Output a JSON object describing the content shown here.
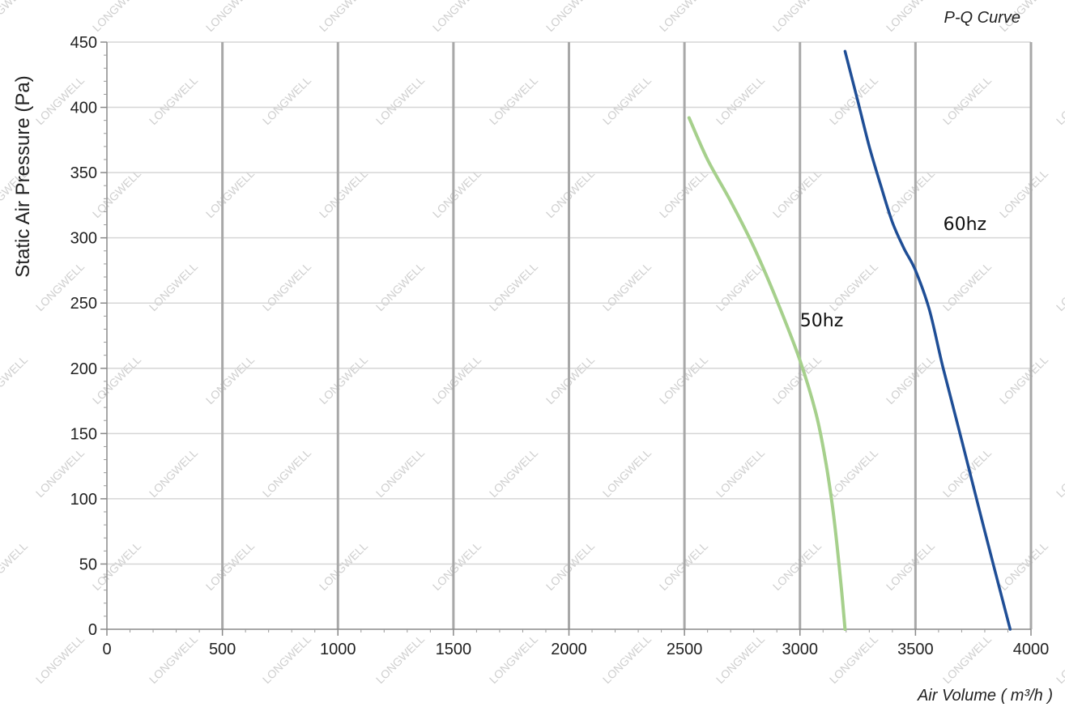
{
  "chart_data": {
    "type": "line",
    "title": "P-Q Curve",
    "xlabel": "Air Volume ( m³/h )",
    "ylabel": "Static Air Pressure (Pa)",
    "xlim": [
      0,
      4000
    ],
    "ylim": [
      0,
      450
    ],
    "xticks": [
      0,
      500,
      1000,
      1500,
      2000,
      2500,
      3000,
      3500,
      4000
    ],
    "yticks": [
      0,
      50,
      100,
      150,
      200,
      250,
      300,
      350,
      400,
      450
    ],
    "grid": true,
    "legend": "none",
    "series": [
      {
        "name": "50hz",
        "color": "#a6d08c",
        "x": [
          2520,
          2600,
          2700,
          2800,
          2900,
          3000,
          3070,
          3110,
          3140,
          3160,
          3180,
          3195
        ],
        "y": [
          392,
          360,
          328,
          293,
          252,
          206,
          165,
          130,
          95,
          65,
          30,
          0
        ]
      },
      {
        "name": "60hz",
        "color": "#1f4e96",
        "x": [
          3195,
          3250,
          3300,
          3350,
          3400,
          3450,
          3500,
          3560,
          3620,
          3700,
          3800,
          3910
        ],
        "y": [
          443,
          405,
          370,
          340,
          312,
          292,
          275,
          245,
          200,
          145,
          75,
          0
        ]
      }
    ],
    "watermark": "LONGWELL"
  }
}
